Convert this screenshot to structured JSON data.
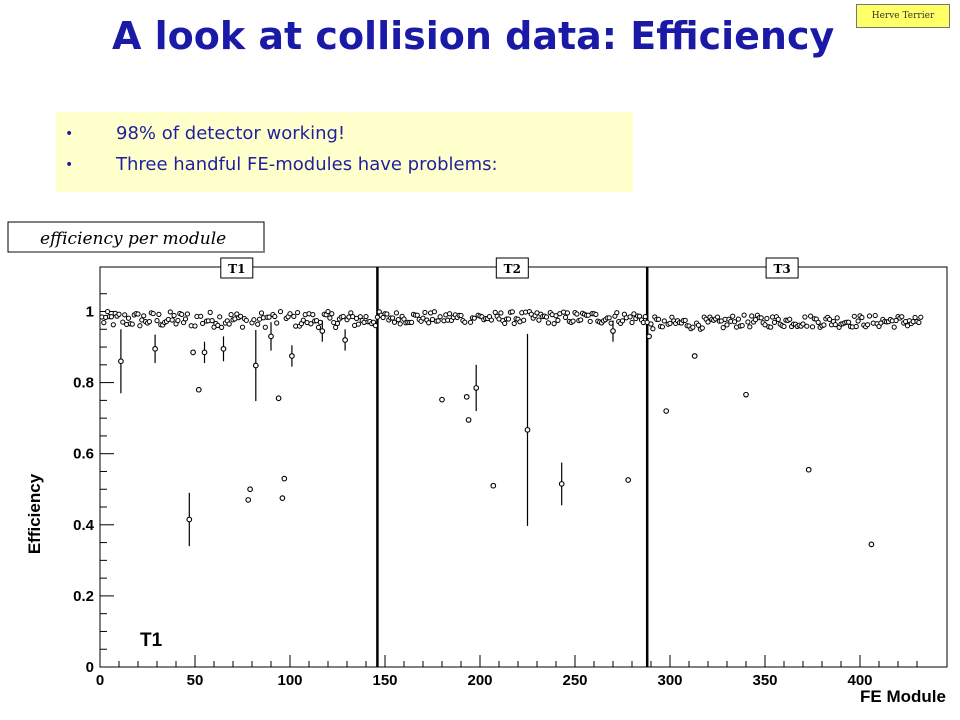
{
  "slide": {
    "title": "A look at collision data: Efficiency",
    "author": "Herve Terrier",
    "bullets": [
      "98% of detector working!",
      "Three handful FE-modules have problems:"
    ],
    "bullet_glyph": "•",
    "colors": {
      "title": "#1a1aa6",
      "bullet_box": "#ffffcc",
      "author_box": "#ffff66"
    }
  },
  "chart_data": {
    "type": "scatter",
    "title": "efficiency per module",
    "xlabel": "FE Module",
    "ylabel": "Efficiency",
    "xlim": [
      0,
      433
    ],
    "ylim": [
      0,
      1.08
    ],
    "xticks": [
      0,
      50,
      100,
      150,
      200,
      250,
      300,
      350,
      400
    ],
    "yticks": [
      0,
      0.2,
      0.4,
      0.6,
      0.8,
      1
    ],
    "ytick_labels": [
      "0",
      "0.2",
      "0.4",
      "0.6",
      "0.8",
      "1"
    ],
    "dividers": [
      146,
      288
    ],
    "region_labels": [
      {
        "label": "T1",
        "x": 72
      },
      {
        "label": "T2",
        "x": 217
      },
      {
        "label": "T3",
        "x": 359
      }
    ],
    "annotation": "T1",
    "grid": false,
    "outliers": [
      {
        "x": 11,
        "y": 0.86,
        "err": 0.09
      },
      {
        "x": 29,
        "y": 0.895,
        "err": 0.04
      },
      {
        "x": 47,
        "y": 0.415,
        "err": 0.075
      },
      {
        "x": 49,
        "y": 0.885,
        "err": 0.0
      },
      {
        "x": 52,
        "y": 0.78,
        "err": 0.0
      },
      {
        "x": 55,
        "y": 0.885,
        "err": 0.03
      },
      {
        "x": 65,
        "y": 0.895,
        "err": 0.035
      },
      {
        "x": 78,
        "y": 0.47,
        "err": 0.0
      },
      {
        "x": 79,
        "y": 0.5,
        "err": 0.0
      },
      {
        "x": 82,
        "y": 0.848,
        "err": 0.1
      },
      {
        "x": 90,
        "y": 0.93,
        "err": 0.04
      },
      {
        "x": 94,
        "y": 0.756,
        "err": 0.0
      },
      {
        "x": 96,
        "y": 0.475,
        "err": 0.0
      },
      {
        "x": 97,
        "y": 0.53,
        "err": 0.0
      },
      {
        "x": 101,
        "y": 0.875,
        "err": 0.03
      },
      {
        "x": 117,
        "y": 0.945,
        "err": 0.03
      },
      {
        "x": 129,
        "y": 0.92,
        "err": 0.03
      },
      {
        "x": 180,
        "y": 0.752,
        "err": 0.0
      },
      {
        "x": 193,
        "y": 0.76,
        "err": 0.0
      },
      {
        "x": 194,
        "y": 0.695,
        "err": 0.0
      },
      {
        "x": 198,
        "y": 0.785,
        "err": 0.065
      },
      {
        "x": 207,
        "y": 0.51,
        "err": 0.0
      },
      {
        "x": 225,
        "y": 0.667,
        "err": 0.27
      },
      {
        "x": 243,
        "y": 0.515,
        "err": 0.06
      },
      {
        "x": 270,
        "y": 0.945,
        "err": 0.03
      },
      {
        "x": 278,
        "y": 0.526,
        "err": 0.0
      },
      {
        "x": 289,
        "y": 0.93,
        "err": 0.0
      },
      {
        "x": 298,
        "y": 0.72,
        "err": 0.0
      },
      {
        "x": 313,
        "y": 0.875,
        "err": 0.0
      },
      {
        "x": 340,
        "y": 0.766,
        "err": 0.0
      },
      {
        "x": 373,
        "y": 0.555,
        "err": 0.0
      },
      {
        "x": 406,
        "y": 0.345,
        "err": 0.0
      }
    ],
    "bulk": {
      "x_range": [
        1,
        432
      ],
      "typical_y": [
        0.94,
        1.0
      ],
      "description_values": "remaining modules lie between 0.94 and 1.00"
    }
  }
}
